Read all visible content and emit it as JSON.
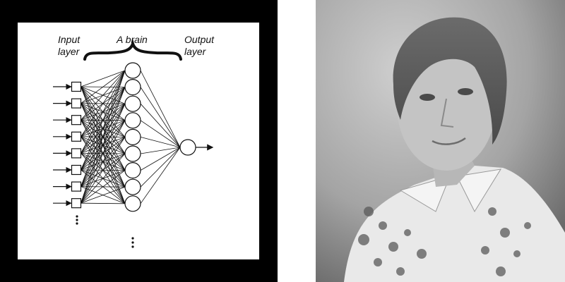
{
  "diagram": {
    "input_label": "Input\nlayer",
    "hidden_label": "A brain",
    "output_label": "Output\nlayer",
    "input_node_count": 8,
    "hidden_node_count": 9
  },
  "photo": {
    "description_name": "grayscale portrait photo"
  },
  "colors": {
    "left_background": "#000000",
    "diagram_background": "#ffffff",
    "ink": "#111111",
    "photo_background_light": "#c9c9c9",
    "photo_background_dark": "#6e6e6e"
  }
}
